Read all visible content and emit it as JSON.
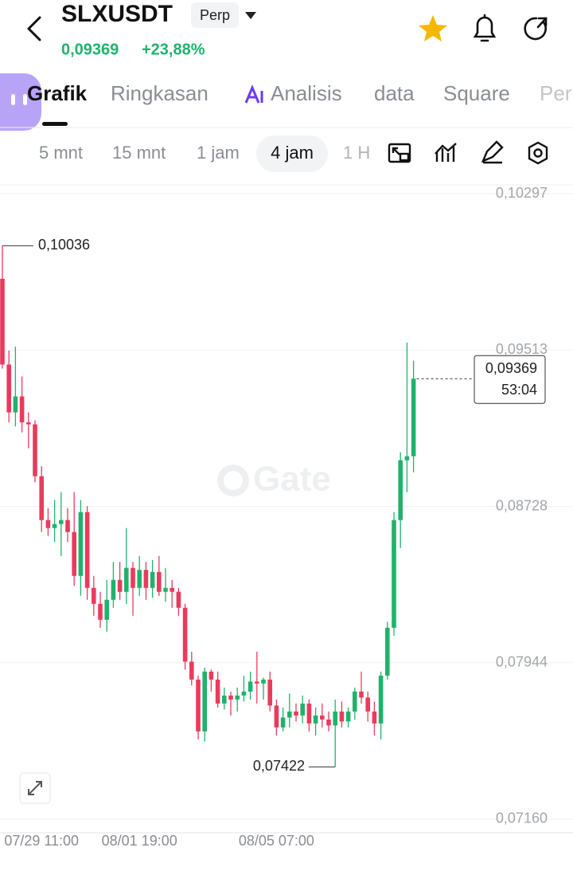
{
  "header": {
    "title": "SLXUSDT",
    "badge": "Perp",
    "price": "0,09369",
    "change": "+23,88%"
  },
  "tabs": [
    "Grafik",
    "Ringkasan",
    "Analisis",
    "data",
    "Square",
    "Per"
  ],
  "timeframes": [
    "5 mnt",
    "15 mnt",
    "1 jam",
    "4 jam",
    "1 H"
  ],
  "chart_data": {
    "type": "candlestick",
    "watermark": "Gate",
    "categories": [
      null,
      null,
      null,
      null,
      null,
      null,
      "07/29 11:00",
      null,
      null,
      null,
      null,
      null,
      null,
      null,
      null,
      null,
      null,
      null,
      null,
      null,
      null,
      "08/01 19:00",
      null,
      null,
      null,
      null,
      null,
      null,
      null,
      null,
      null,
      null,
      null,
      null,
      null,
      null,
      null,
      null,
      null,
      null,
      null,
      null,
      "08/05 07:00",
      null,
      null,
      null,
      null,
      null,
      null,
      null,
      null,
      null,
      null,
      null,
      null,
      null,
      null,
      null,
      null,
      null,
      null,
      null,
      null,
      null
    ],
    "open": [
      0.0987,
      0.0944,
      0.092,
      0.0928,
      0.0915,
      0.0914,
      0.0888,
      0.0866,
      0.0862,
      0.0864,
      0.0866,
      0.086,
      0.0838,
      0.087,
      0.0832,
      0.0824,
      0.0816,
      0.0826,
      0.0836,
      0.083,
      0.0842,
      0.0832,
      0.0841,
      0.0832,
      0.084,
      0.083,
      0.0832,
      0.083,
      0.0822,
      0.0795,
      0.0786,
      0.076,
      0.079,
      0.0786,
      0.0774,
      0.0778,
      0.0776,
      0.0778,
      0.078,
      0.0785,
      0.0784,
      0.0786,
      0.0773,
      0.0762,
      0.0767,
      0.077,
      0.0768,
      0.0774,
      0.0764,
      0.0768,
      0.0766,
      0.0763,
      0.077,
      0.0765,
      0.077,
      0.078,
      0.0777,
      0.077,
      0.0764,
      0.0788,
      0.0812,
      0.0866,
      0.0896,
      0.0898
    ],
    "high": [
      0.10036,
      0.0951,
      0.0953,
      0.0938,
      0.092,
      0.0916,
      0.0893,
      0.0872,
      0.0876,
      0.088,
      0.0872,
      0.088,
      0.0876,
      0.0873,
      0.0838,
      0.083,
      0.0836,
      0.0845,
      0.0845,
      0.0862,
      0.0845,
      0.0848,
      0.0845,
      0.0846,
      0.0848,
      0.0842,
      0.0836,
      0.0832,
      0.0824,
      0.08,
      0.0788,
      0.0792,
      0.0791,
      0.079,
      0.0782,
      0.078,
      0.0782,
      0.0788,
      0.079,
      0.08,
      0.0787,
      0.079,
      0.0776,
      0.0772,
      0.0779,
      0.0774,
      0.0778,
      0.0776,
      0.0772,
      0.0774,
      0.077,
      0.0776,
      0.0775,
      0.0772,
      0.0782,
      0.079,
      0.078,
      0.0775,
      0.079,
      0.0815,
      0.087,
      0.09,
      0.0955,
      0.0946
    ],
    "low": [
      0.0942,
      0.0915,
      0.0913,
      0.091,
      0.0902,
      0.0885,
      0.086,
      0.0858,
      0.0855,
      0.0848,
      0.0855,
      0.0833,
      0.0828,
      0.0826,
      0.0818,
      0.0812,
      0.081,
      0.0822,
      0.0826,
      0.0824,
      0.0818,
      0.0828,
      0.0826,
      0.0827,
      0.0828,
      0.0825,
      0.0822,
      0.0818,
      0.0791,
      0.0783,
      0.0756,
      0.0755,
      0.078,
      0.0772,
      0.0771,
      0.0768,
      0.077,
      0.0775,
      0.0776,
      0.0774,
      0.0776,
      0.077,
      0.0758,
      0.076,
      0.0762,
      0.0765,
      0.0764,
      0.076,
      0.0758,
      0.0762,
      0.076,
      0.07422,
      0.0762,
      0.0762,
      0.0766,
      0.0774,
      0.0765,
      0.0758,
      0.0756,
      0.0786,
      0.0808,
      0.0852,
      0.088,
      0.089
    ],
    "close": [
      0.0944,
      0.092,
      0.0928,
      0.0915,
      0.0914,
      0.0888,
      0.0866,
      0.0862,
      0.0864,
      0.0866,
      0.086,
      0.0838,
      0.087,
      0.0832,
      0.0824,
      0.0816,
      0.0826,
      0.0836,
      0.083,
      0.0842,
      0.0832,
      0.0841,
      0.0832,
      0.084,
      0.083,
      0.0832,
      0.083,
      0.0822,
      0.0795,
      0.0786,
      0.076,
      0.079,
      0.0786,
      0.0774,
      0.0778,
      0.0776,
      0.0778,
      0.078,
      0.0785,
      0.0784,
      0.0786,
      0.0773,
      0.0762,
      0.0767,
      0.077,
      0.0768,
      0.0774,
      0.0764,
      0.0768,
      0.0766,
      0.0763,
      0.077,
      0.0765,
      0.077,
      0.078,
      0.0777,
      0.077,
      0.0764,
      0.0788,
      0.0812,
      0.0866,
      0.0896,
      0.0898,
      0.09369
    ],
    "up_color": "#20b26c",
    "down_color": "#ea3a5d",
    "high_label": "0,10036",
    "low_label": "0,07422",
    "current_price_label": "0,09369",
    "countdown": "53:04",
    "ylim": [
      0.07092,
      0.10341
    ],
    "yticks": [
      {
        "value": 0.10297,
        "label": "0,10297"
      },
      {
        "value": 0.09513,
        "label": "0,09513"
      },
      {
        "value": 0.08728,
        "label": "0,08728"
      },
      {
        "value": 0.07944,
        "label": "0,07944"
      },
      {
        "value": 0.0716,
        "label": "0,07160"
      }
    ],
    "grid": true
  }
}
